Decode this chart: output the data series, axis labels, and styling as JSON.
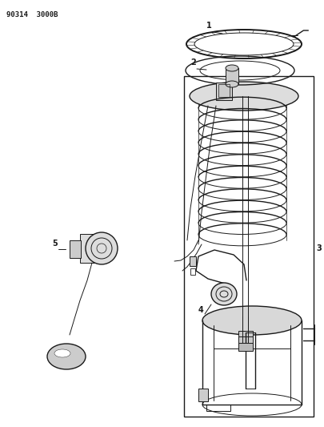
{
  "title_text": "90314  3000B",
  "bg_color": "#ffffff",
  "line_color": "#1a1a1a",
  "figsize": [
    4.05,
    5.33
  ],
  "dpi": 100
}
